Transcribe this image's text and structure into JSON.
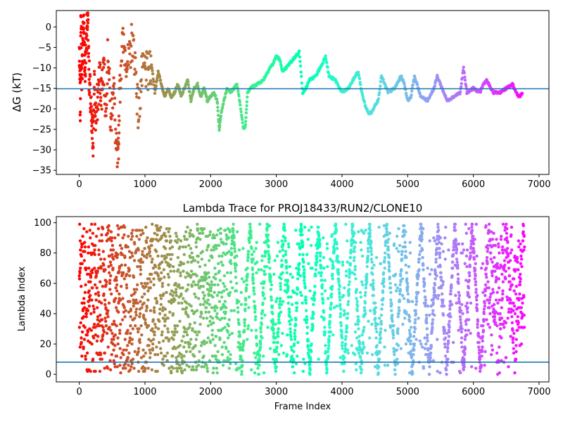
{
  "chart_data": [
    {
      "type": "scatter",
      "title": "",
      "xlabel": "",
      "ylabel": "ΔG (kT)",
      "xlim": [
        -350,
        7150
      ],
      "ylim": [
        -36,
        4
      ],
      "xticks": [
        0,
        1000,
        2000,
        3000,
        4000,
        5000,
        6000,
        7000
      ],
      "xtick_labels": [
        "0",
        "1000",
        "2000",
        "3000",
        "4000",
        "5000",
        "6000",
        "7000"
      ],
      "yticks": [
        -35,
        -30,
        -25,
        -20,
        -15,
        -10,
        -5,
        0
      ],
      "ytick_labels": [
        "−35",
        "−30",
        "−25",
        "−20",
        "−15",
        "−10",
        "−5",
        "0"
      ],
      "grid": false,
      "colormap": "rainbow",
      "hline": {
        "y": -15.1,
        "color": "#1f77b4"
      },
      "series": [
        {
          "x": [
            0,
            15,
            25,
            40,
            55,
            70,
            85,
            100,
            115,
            130,
            150,
            170,
            190,
            210,
            230,
            250,
            280,
            310,
            340,
            370,
            400,
            440,
            480,
            520,
            560,
            590,
            610,
            650,
            700,
            750,
            800,
            850,
            900,
            950,
            1000,
            1050,
            1100,
            1150,
            1200,
            1250,
            1300,
            1350,
            1400,
            1450,
            1500,
            1550,
            1600,
            1650,
            1700,
            1750,
            1800,
            1850,
            1900,
            1950,
            2000,
            2050,
            2100,
            2130,
            2150,
            2200,
            2250,
            2300,
            2350,
            2400,
            2450,
            2500,
            2530,
            2560,
            2600,
            2700,
            2800,
            2900,
            2950,
            3000,
            3050,
            3100,
            3200,
            3300,
            3350,
            3400,
            3450,
            3500,
            3600,
            3700,
            3750,
            3800,
            3900,
            4000,
            4100,
            4200,
            4250,
            4300,
            4350,
            4400,
            4450,
            4500,
            4550,
            4600,
            4700,
            4800,
            4900,
            4950,
            5000,
            5050,
            5100,
            5200,
            5300,
            5400,
            5450,
            5500,
            5600,
            5700,
            5800,
            5850,
            5900,
            6000,
            6100,
            6150,
            6200,
            6300,
            6400,
            6500,
            6600,
            6650,
            6700,
            6750
          ],
          "y": [
            -6,
            -20,
            3,
            -14,
            -2,
            1,
            -10,
            -7,
            0,
            3,
            -12,
            -18,
            -25,
            -27,
            -15,
            -22,
            -18,
            -12,
            -16,
            -8,
            -20,
            -5,
            -25,
            -12,
            -30,
            -34,
            -18,
            -4,
            -6,
            -10,
            -3,
            -8,
            -22,
            -12,
            -10,
            -12,
            -9,
            -16,
            -11,
            -14,
            -17,
            -15,
            -17,
            -16,
            -14,
            -17,
            -15,
            -13,
            -18,
            -15,
            -14,
            -17,
            -15,
            -18,
            -17,
            -16,
            -18,
            -25,
            -22,
            -18,
            -15,
            -16,
            -15,
            -14,
            -19,
            -25,
            -24,
            -16,
            -15,
            -14,
            -13,
            -10,
            -9,
            -7,
            -8,
            -11,
            -9,
            -7,
            -6,
            -16,
            -15,
            -13,
            -12,
            -9,
            -7,
            -12,
            -13,
            -16,
            -15,
            -12,
            -11,
            -16,
            -19,
            -21,
            -21,
            -19,
            -18,
            -12,
            -16,
            -15,
            -12,
            -14,
            -18,
            -17,
            -12,
            -17,
            -18,
            -15,
            -12,
            -14,
            -18,
            -17,
            -16,
            -10,
            -16,
            -15,
            -16,
            -14,
            -13,
            -16,
            -16,
            -15,
            -14,
            -16,
            -17,
            -16
          ]
        }
      ]
    },
    {
      "type": "scatter",
      "title": "Lambda Trace for PROJ18433/RUN2/CLONE10",
      "xlabel": "Frame Index",
      "ylabel": "Lambda Index",
      "xlim": [
        -350,
        7150
      ],
      "ylim": [
        -5,
        104
      ],
      "xticks": [
        0,
        1000,
        2000,
        3000,
        4000,
        5000,
        6000,
        7000
      ],
      "xtick_labels": [
        "0",
        "1000",
        "2000",
        "3000",
        "4000",
        "5000",
        "6000",
        "7000"
      ],
      "yticks": [
        0,
        20,
        40,
        60,
        80,
        100
      ],
      "ytick_labels": [
        "0",
        "20",
        "40",
        "60",
        "80",
        "100"
      ],
      "grid": false,
      "colormap": "rainbow",
      "hline": {
        "y": 8,
        "color": "#1f77b4"
      },
      "frame_count": 6780,
      "lambda_range": [
        0,
        99
      ]
    }
  ]
}
